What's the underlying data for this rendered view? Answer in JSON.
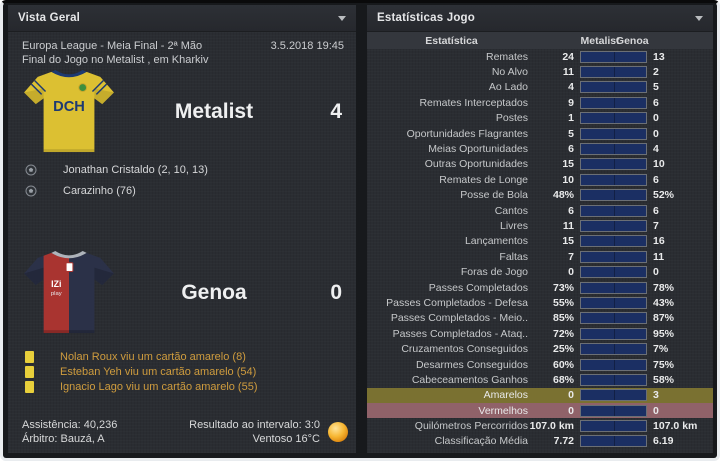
{
  "left_panel": {
    "title": "Vista Geral",
    "competition": "Europa League - Meia Final - 2ª Mão",
    "datetime": "3.5.2018 19:45",
    "status": "Final do Jogo no Metalist , em Kharkiv",
    "home": {
      "name": "Metalist",
      "score": "4",
      "kit_text": "DCH"
    },
    "home_events": [
      "Jonathan Cristaldo (2, 10, 13)",
      "Carazinho (76)"
    ],
    "away": {
      "name": "Genoa",
      "score": "0",
      "kit_text_1": "IZi",
      "kit_text_2": "play"
    },
    "away_events": [
      "Nolan Roux viu um cartão amarelo (8)",
      "Esteban Yeh viu um cartão amarelo (54)",
      "Ignacio Lago viu um cartão amarelo (55)"
    ],
    "attendance": "Assistência: 40,236",
    "referee": "Árbitro: Bauzá, A",
    "halftime": "Resultado ao intervalo: 3:0",
    "weather": "Ventoso 16°C",
    "weather_icon": "sunny-ball"
  },
  "stats_panel": {
    "title": "Estatísticas Jogo",
    "columns": {
      "stat": "Estatística",
      "home": "Metalist",
      "away": "Genoa"
    },
    "colors": {
      "home_bar": "#e6df39",
      "away_bar": "#1b2f63",
      "yellow_row_bg": "#7a7131",
      "red_row_bg": "#906269",
      "card_text": "#cf9c3e",
      "card_icon": "#e8cf3b"
    },
    "rows": [
      {
        "label": "Remates",
        "home": "24",
        "away": "13",
        "hv": 24,
        "av": 13
      },
      {
        "label": "No Alvo",
        "home": "11",
        "away": "2",
        "hv": 11,
        "av": 2
      },
      {
        "label": "Ao Lado",
        "home": "4",
        "away": "5",
        "hv": 4,
        "av": 5
      },
      {
        "label": "Remates Interceptados",
        "home": "9",
        "away": "6",
        "hv": 9,
        "av": 6
      },
      {
        "label": "Postes",
        "home": "1",
        "away": "0",
        "hv": 1,
        "av": 0
      },
      {
        "label": "Oportunidades Flagrantes",
        "home": "5",
        "away": "0",
        "hv": 5,
        "av": 0
      },
      {
        "label": "Meias Oportunidades",
        "home": "6",
        "away": "4",
        "hv": 6,
        "av": 4
      },
      {
        "label": "Outras Oportunidades",
        "home": "15",
        "away": "10",
        "hv": 15,
        "av": 10
      },
      {
        "label": "Remates de Longe",
        "home": "10",
        "away": "6",
        "hv": 10,
        "av": 6
      },
      {
        "label": "Posse de Bola",
        "home": "48%",
        "away": "52%",
        "hv": 48,
        "av": 52
      },
      {
        "label": "Cantos",
        "home": "6",
        "away": "6",
        "hv": 6,
        "av": 6
      },
      {
        "label": "Livres",
        "home": "11",
        "away": "7",
        "hv": 11,
        "av": 7
      },
      {
        "label": "Lançamentos",
        "home": "15",
        "away": "16",
        "hv": 15,
        "av": 16
      },
      {
        "label": "Faltas",
        "home": "7",
        "away": "11",
        "hv": 7,
        "av": 11
      },
      {
        "label": "Foras de Jogo",
        "home": "0",
        "away": "0",
        "hv": 0,
        "av": 0
      },
      {
        "label": "Passes Completados",
        "home": "73%",
        "away": "78%",
        "hv": 73,
        "av": 78
      },
      {
        "label": "Passes Completados - Defesa",
        "home": "55%",
        "away": "43%",
        "hv": 55,
        "av": 43
      },
      {
        "label": "Passes Completados - Meio..",
        "home": "85%",
        "away": "87%",
        "hv": 85,
        "av": 87
      },
      {
        "label": "Passes Completados - Ataq..",
        "home": "72%",
        "away": "95%",
        "hv": 72,
        "av": 95
      },
      {
        "label": "Cruzamentos Conseguidos",
        "home": "25%",
        "away": "7%",
        "hv": 25,
        "av": 7
      },
      {
        "label": "Desarmes Conseguidos",
        "home": "60%",
        "away": "75%",
        "hv": 60,
        "av": 75
      },
      {
        "label": "Cabeceamentos Ganhos",
        "home": "68%",
        "away": "58%",
        "hv": 68,
        "av": 58
      },
      {
        "label": "Amarelos",
        "home": "0",
        "away": "3",
        "hv": 0,
        "av": 3,
        "highlight": "yellow"
      },
      {
        "label": "Vermelhos",
        "home": "0",
        "away": "0",
        "hv": 0,
        "av": 0,
        "highlight": "red"
      },
      {
        "label": "Quilómetros Percorridos",
        "home": "107.0 km",
        "away": "107.0 km",
        "hv": 107,
        "av": 107
      },
      {
        "label": "Classificação Média",
        "home": "7.72",
        "away": "6.19",
        "hv": 7.72,
        "av": 6.19
      }
    ]
  }
}
